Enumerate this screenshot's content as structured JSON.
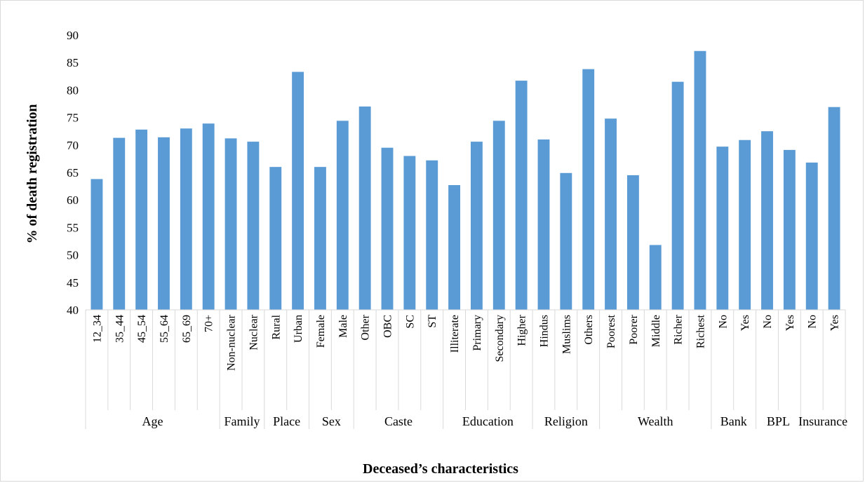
{
  "chart_data": {
    "type": "bar",
    "xlabel": "Deceased’s characteristics",
    "ylabel": "% of death registration",
    "ylim": [
      40,
      90
    ],
    "ytick_step": 5,
    "bar_color": "#5b9bd5",
    "grid": false,
    "legend": "none",
    "groups": [
      {
        "name": "Age",
        "categories": [
          "12_34",
          "35_44",
          "45_54",
          "55_64",
          "65_69",
          "70+"
        ],
        "values": [
          63.8,
          71.3,
          72.8,
          71.4,
          73.0,
          73.9
        ]
      },
      {
        "name": "Family",
        "categories": [
          "Non-nuclear",
          "Nuclear"
        ],
        "values": [
          71.2,
          70.6
        ]
      },
      {
        "name": "Place",
        "categories": [
          "Rural",
          "Urban"
        ],
        "values": [
          66.0,
          83.3
        ]
      },
      {
        "name": "Sex",
        "categories": [
          "Female",
          "Male"
        ],
        "values": [
          66.0,
          74.4
        ]
      },
      {
        "name": "Caste",
        "categories": [
          "Other",
          "OBC",
          "SC",
          "ST"
        ],
        "values": [
          77.0,
          69.5,
          68.0,
          67.2
        ]
      },
      {
        "name": "Education",
        "categories": [
          "Illiterate",
          "Primary",
          "Secondary",
          "Higher"
        ],
        "values": [
          62.7,
          70.6,
          74.4,
          81.7
        ]
      },
      {
        "name": "Religion",
        "categories": [
          "Hindus",
          "Muslims",
          "Others"
        ],
        "values": [
          71.0,
          64.9,
          83.8
        ]
      },
      {
        "name": "Wealth",
        "categories": [
          "Poorest",
          "Poorer",
          "Middle",
          "Richer",
          "Richest"
        ],
        "values": [
          74.8,
          64.5,
          51.8,
          81.5,
          87.1
        ]
      },
      {
        "name": "Bank",
        "categories": [
          "No",
          "Yes"
        ],
        "values": [
          69.7,
          70.9
        ]
      },
      {
        "name": "BPL",
        "categories": [
          "No",
          "Yes"
        ],
        "values": [
          72.5,
          69.1
        ]
      },
      {
        "name": "Insurance",
        "categories": [
          "No",
          "Yes"
        ],
        "values": [
          66.8,
          76.9
        ]
      }
    ]
  }
}
